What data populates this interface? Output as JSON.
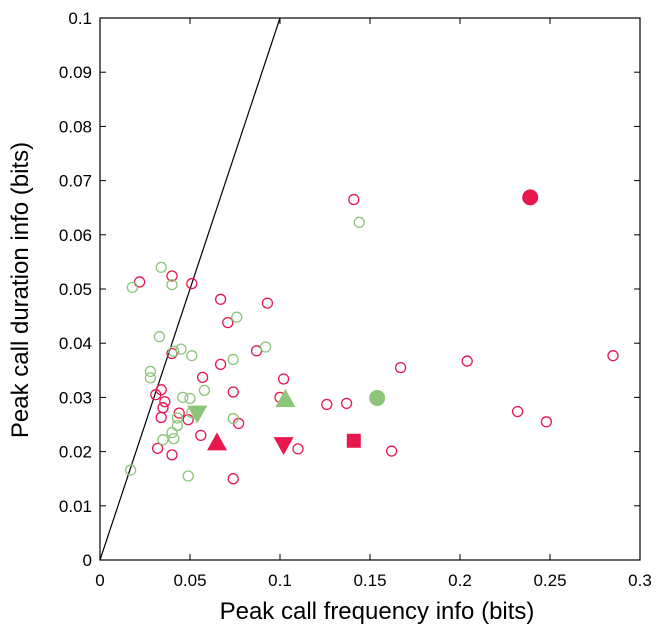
{
  "chart_data": {
    "type": "scatter",
    "title": "",
    "xlabel": "Peak call frequency info (bits)",
    "ylabel": "Peak call duration info (bits)",
    "xlim": [
      0,
      0.3
    ],
    "ylim": [
      0,
      0.1
    ],
    "xticks": [
      "0",
      "0.05",
      "0.1",
      "0.15",
      "0.2",
      "0.25",
      "0.3"
    ],
    "yticks": [
      "0",
      "0.01",
      "0.02",
      "0.03",
      "0.04",
      "0.05",
      "0.06",
      "0.07",
      "0.08",
      "0.09",
      "0.1"
    ],
    "grid": false,
    "legend": "none",
    "reference_line": {
      "from": [
        0,
        0
      ],
      "to": [
        0.1,
        0.1
      ],
      "color": "#000000"
    },
    "series": [
      {
        "color": "#e8184e",
        "marker": "open-circle",
        "points": [
          [
            0.141,
            0.0665
          ],
          [
            0.022,
            0.0513
          ],
          [
            0.04,
            0.0524
          ],
          [
            0.051,
            0.051
          ],
          [
            0.067,
            0.0481
          ],
          [
            0.093,
            0.0474
          ],
          [
            0.071,
            0.0438
          ],
          [
            0.04,
            0.0381
          ],
          [
            0.087,
            0.0386
          ],
          [
            0.067,
            0.0361
          ],
          [
            0.167,
            0.0355
          ],
          [
            0.204,
            0.0367
          ],
          [
            0.285,
            0.0377
          ],
          [
            0.102,
            0.0334
          ],
          [
            0.057,
            0.0337
          ],
          [
            0.034,
            0.0314
          ],
          [
            0.031,
            0.0305
          ],
          [
            0.036,
            0.0292
          ],
          [
            0.035,
            0.0281
          ],
          [
            0.074,
            0.031
          ],
          [
            0.1,
            0.03
          ],
          [
            0.126,
            0.0287
          ],
          [
            0.137,
            0.0289
          ],
          [
            0.044,
            0.0271
          ],
          [
            0.049,
            0.0259
          ],
          [
            0.034,
            0.0263
          ],
          [
            0.232,
            0.0274
          ],
          [
            0.248,
            0.0255
          ],
          [
            0.077,
            0.0252
          ],
          [
            0.056,
            0.023
          ],
          [
            0.032,
            0.0206
          ],
          [
            0.04,
            0.0194
          ],
          [
            0.11,
            0.0205
          ],
          [
            0.162,
            0.0201
          ],
          [
            0.074,
            0.015
          ]
        ]
      },
      {
        "color": "#8cc47a",
        "marker": "open-circle",
        "points": [
          [
            0.144,
            0.0623
          ],
          [
            0.034,
            0.054
          ],
          [
            0.018,
            0.0503
          ],
          [
            0.04,
            0.0508
          ],
          [
            0.076,
            0.0448
          ],
          [
            0.033,
            0.0412
          ],
          [
            0.092,
            0.0393
          ],
          [
            0.045,
            0.0389
          ],
          [
            0.041,
            0.0385
          ],
          [
            0.051,
            0.0377
          ],
          [
            0.074,
            0.037
          ],
          [
            0.028,
            0.0348
          ],
          [
            0.028,
            0.0336
          ],
          [
            0.058,
            0.0313
          ],
          [
            0.046,
            0.03
          ],
          [
            0.05,
            0.0298
          ],
          [
            0.051,
            0.0272
          ],
          [
            0.043,
            0.0262
          ],
          [
            0.074,
            0.0261
          ],
          [
            0.043,
            0.0248
          ],
          [
            0.04,
            0.0235
          ],
          [
            0.035,
            0.0222
          ],
          [
            0.041,
            0.0224
          ],
          [
            0.017,
            0.0166
          ],
          [
            0.049,
            0.0155
          ]
        ]
      },
      {
        "color": "#e8184e",
        "marker": "filled",
        "points": [
          {
            "x": 0.239,
            "y": 0.0669,
            "shape": "circle"
          },
          {
            "x": 0.065,
            "y": 0.0217,
            "shape": "triangle-up"
          },
          {
            "x": 0.102,
            "y": 0.0212,
            "shape": "triangle-down"
          },
          {
            "x": 0.141,
            "y": 0.022,
            "shape": "square"
          }
        ]
      },
      {
        "color": "#8cc47a",
        "marker": "filled",
        "points": [
          {
            "x": 0.154,
            "y": 0.0299,
            "shape": "circle"
          },
          {
            "x": 0.103,
            "y": 0.0297,
            "shape": "triangle-up"
          },
          {
            "x": 0.054,
            "y": 0.027,
            "shape": "triangle-down"
          }
        ]
      }
    ]
  }
}
